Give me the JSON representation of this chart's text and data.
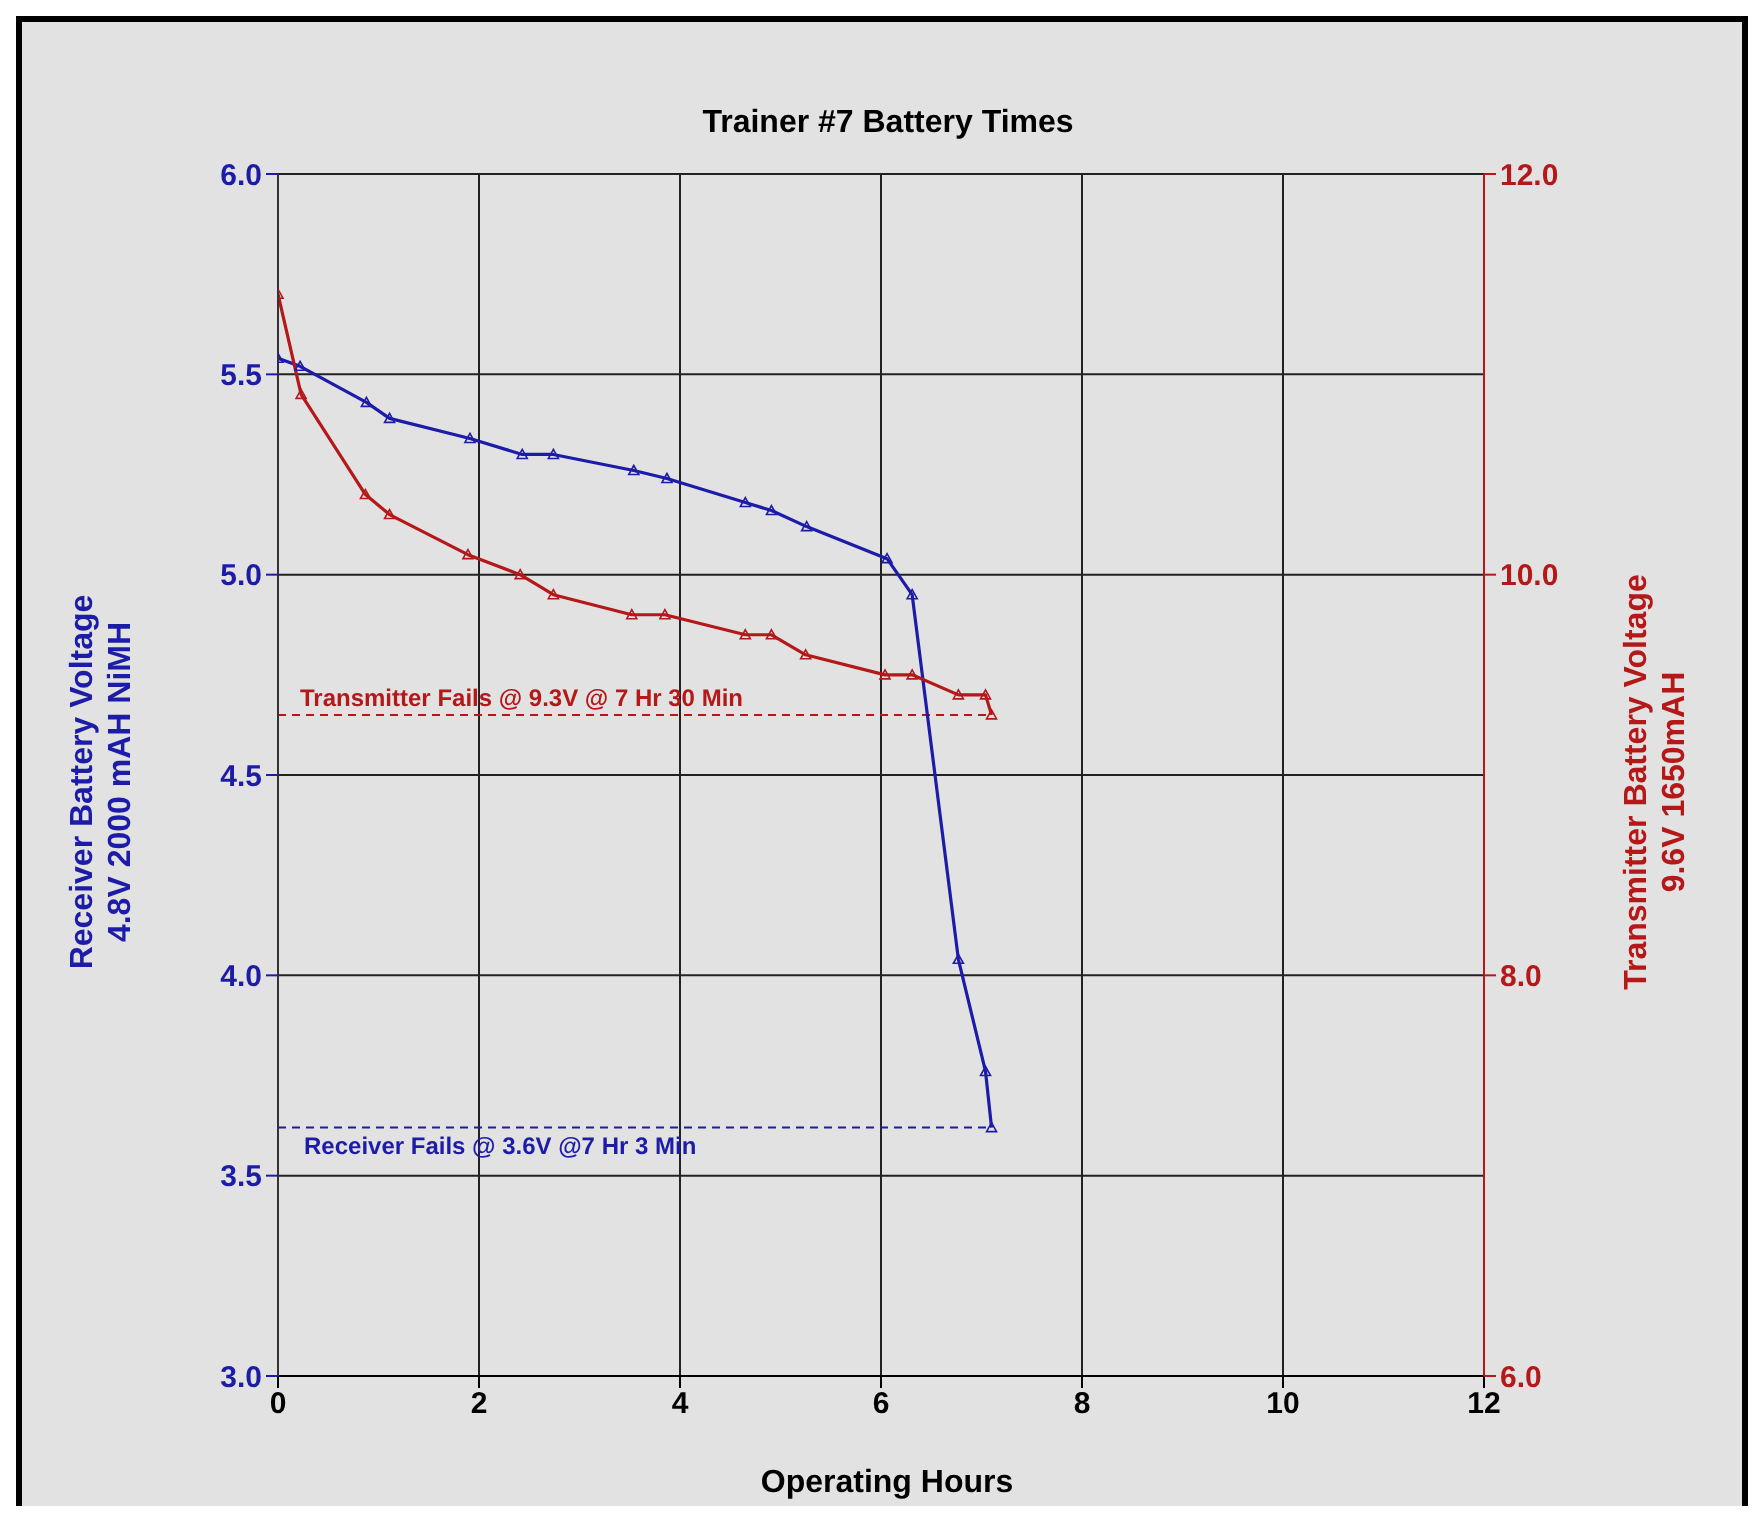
{
  "chart_data": {
    "type": "line",
    "title": "Trainer #7 Battery Times",
    "xlabel": "Operating Hours",
    "ylabel": "Receiver Battery Voltage\n4.8V 2000 mAH NiMH",
    "y2label": "Transmitter Battery Voltage\n9.6V 1650mAH",
    "series": [
      {
        "color": "#1c1ca8",
        "x": [
          0,
          0.22,
          0.88,
          1.11,
          1.91,
          2.43,
          2.74,
          3.54,
          3.87,
          4.65,
          4.91,
          5.26,
          6.06,
          6.31,
          6.77,
          7.04,
          7.1
        ],
        "values": [
          5.54,
          5.52,
          5.43,
          5.39,
          5.34,
          5.3,
          5.3,
          5.26,
          5.24,
          5.18,
          5.16,
          5.12,
          5.04,
          4.95,
          4.04,
          3.76,
          3.62
        ]
      },
      {
        "color": "#b41818",
        "axis": "y2",
        "x": [
          0,
          0.23,
          0.87,
          1.11,
          1.89,
          2.41,
          2.74,
          3.52,
          3.85,
          4.65,
          4.91,
          5.25,
          6.04,
          6.31,
          6.77,
          7.04,
          7.1
        ],
        "values": [
          11.4,
          10.9,
          10.4,
          10.3,
          10.1,
          10,
          9.9,
          9.8,
          9.8,
          9.7,
          9.7,
          9.6,
          9.5,
          9.5,
          9.4,
          9.4,
          9.3
        ]
      }
    ],
    "xlim": [
      0,
      12
    ],
    "xticks": [
      0,
      2,
      4,
      6,
      8,
      10,
      12
    ],
    "ylim": [
      3,
      6
    ],
    "yticks": [
      {
        "value": 3,
        "label": "3.0"
      },
      3.5,
      {
        "value": 4,
        "label": "4.0"
      },
      4.5,
      {
        "value": 5,
        "label": "5.0"
      },
      5.5,
      {
        "value": 6,
        "label": "6.0"
      }
    ],
    "y2lim": [
      6,
      12
    ],
    "y2ticks": [
      {
        "value": 6,
        "label": "6.0"
      },
      {
        "value": 8,
        "label": "8.0"
      },
      {
        "value": 10,
        "label": "10.0"
      },
      {
        "value": 12,
        "label": "12.0"
      }
    ],
    "ref_lines": [
      {
        "axis": "y2",
        "value": 9.3,
        "label": "Transmitter Fails @ 9.3V @ 7 Hr 30 Min",
        "color": "#b41818",
        "line_style": "dashed"
      },
      {
        "axis": "y",
        "value": 3.62,
        "label": "Receiver  Fails @ 3.6V @7 Hr 3 Min",
        "color": "#1c1ca8",
        "line_style": "dashed"
      }
    ],
    "grid": true,
    "marker": "triangle",
    "line_style": "solid"
  }
}
